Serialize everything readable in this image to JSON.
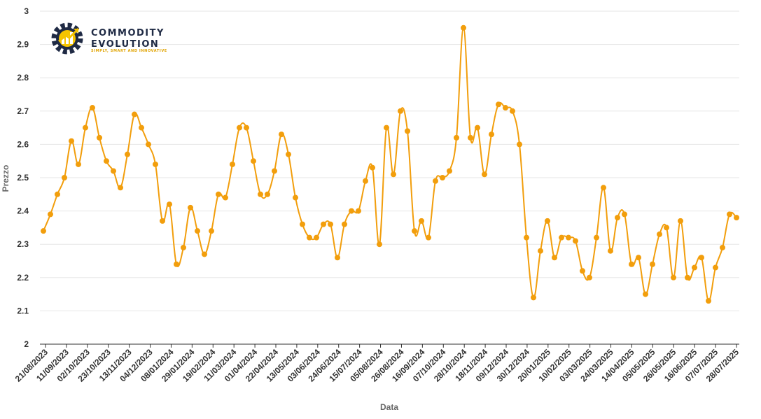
{
  "logo": {
    "line1": "COMMODITY",
    "line2": "EVOLUTION",
    "tagline": "SIMPLY, SMART AND INNOVATIVE",
    "gear_color": "#1f2a44",
    "accent_color": "#f5c400"
  },
  "chart_data": {
    "type": "line",
    "xlabel": "Data",
    "ylabel": "Prezzo",
    "ylim": [
      2,
      3
    ],
    "yticks": [
      2,
      2.1,
      2.2,
      2.3,
      2.4,
      2.5,
      2.6,
      2.7,
      2.8,
      2.9,
      3
    ],
    "grid": "horizontal",
    "line_color": "#f29e0c",
    "x_tick_labels": [
      "21/08/2023",
      "11/09/2023",
      "02/10/2023",
      "23/10/2023",
      "13/11/2023",
      "04/12/2023",
      "08/01/2024",
      "29/01/2024",
      "19/02/2024",
      "11/03/2024",
      "01/04/2024",
      "22/04/2024",
      "13/05/2024",
      "03/06/2024",
      "24/06/2024",
      "15/07/2024",
      "05/08/2024",
      "26/08/2024",
      "16/09/2024",
      "07/10/2024",
      "28/10/2024",
      "18/11/2024",
      "09/12/2024",
      "30/12/2024",
      "20/01/2025",
      "10/02/2025",
      "03/03/2025",
      "24/03/2025",
      "14/04/2025",
      "05/05/2025",
      "26/05/2025",
      "16/06/2025",
      "07/07/2025",
      "28/07/2025"
    ],
    "series": [
      {
        "values": [
          2.34,
          2.39,
          2.45,
          2.5,
          2.61,
          2.54,
          2.65,
          2.71,
          2.62,
          2.55,
          2.52,
          2.47,
          2.57,
          2.69,
          2.65,
          2.6,
          2.54,
          2.37,
          2.42,
          2.24,
          2.29,
          2.41,
          2.34,
          2.27,
          2.34,
          2.45,
          2.44,
          2.54,
          2.65,
          2.65,
          2.55,
          2.45,
          2.45,
          2.52,
          2.63,
          2.57,
          2.44,
          2.36,
          2.32,
          2.32,
          2.36,
          2.36,
          2.26,
          2.36,
          2.4,
          2.4,
          2.49,
          2.53,
          2.3,
          2.65,
          2.51,
          2.7,
          2.64,
          2.34,
          2.37,
          2.32,
          2.49,
          2.5,
          2.52,
          2.62,
          2.95,
          2.62,
          2.65,
          2.51,
          2.63,
          2.72,
          2.71,
          2.7,
          2.6,
          2.32,
          2.14,
          2.28,
          2.37,
          2.26,
          2.32,
          2.32,
          2.31,
          2.22,
          2.2,
          2.32,
          2.47,
          2.28,
          2.38,
          2.39,
          2.24,
          2.26,
          2.15,
          2.24,
          2.33,
          2.35,
          2.2,
          2.37,
          2.2,
          2.23,
          2.26,
          2.13,
          2.23,
          2.29,
          2.39,
          2.38
        ]
      }
    ]
  }
}
